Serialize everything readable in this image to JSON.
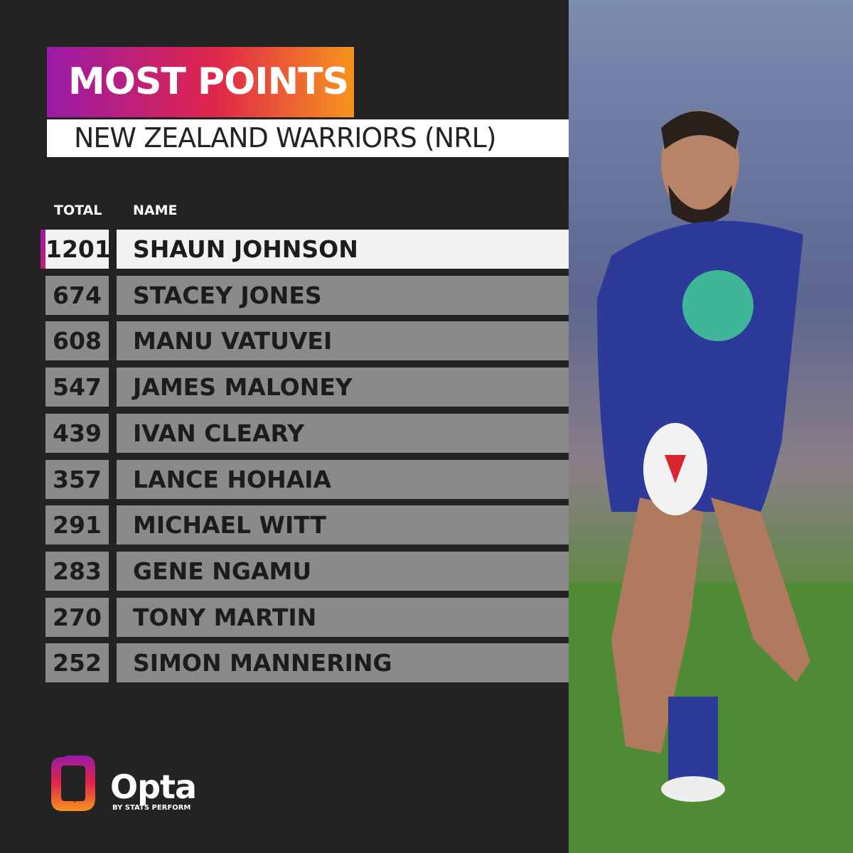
{
  "header": {
    "title": "MOST POINTS",
    "subtitle": "NEW ZEALAND WARRIORS (NRL)"
  },
  "table": {
    "columns": [
      "TOTAL",
      "NAME"
    ],
    "rows": [
      [
        1201,
        "SHAUN JOHNSON"
      ],
      [
        674,
        "STACEY JONES"
      ],
      [
        608,
        "MANU VATUVEI"
      ],
      [
        547,
        "JAMES MALONEY"
      ],
      [
        439,
        "IVAN CLEARY"
      ],
      [
        357,
        "LANCE HOHAIA"
      ],
      [
        291,
        "MICHAEL WITT"
      ],
      [
        283,
        "GENE NGAMU"
      ],
      [
        270,
        "TONY MARTIN"
      ],
      [
        252,
        "SIMON MANNERING"
      ]
    ]
  },
  "logo": {
    "name": "Opta",
    "tagline": "BY STATS PERFORM"
  }
}
